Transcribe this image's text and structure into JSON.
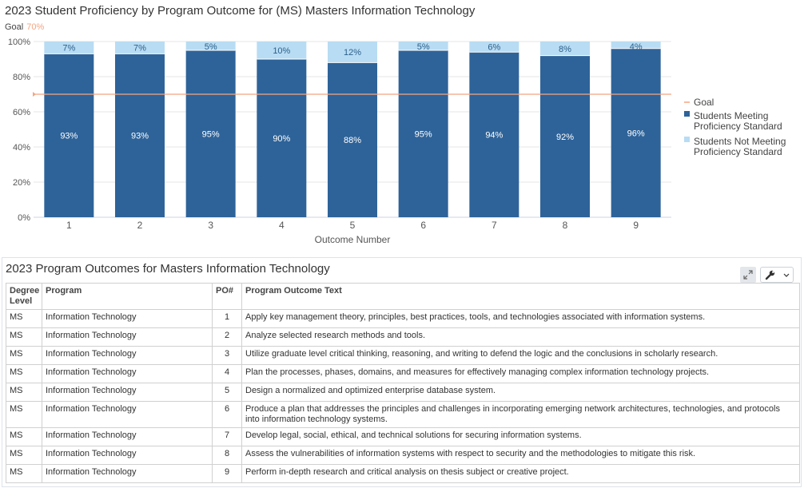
{
  "chart_data": {
    "type": "bar",
    "stacked": true,
    "title": "2023 Student Proficiency by Program Outcome for (MS) Masters Information Technology",
    "goal_label": "Goal",
    "goal_value_label": "70%",
    "goal": 70,
    "xlabel": "Outcome Number",
    "ylabel": "",
    "ylim": [
      0,
      100
    ],
    "y_ticks": [
      "0%",
      "20%",
      "40%",
      "60%",
      "80%",
      "100%"
    ],
    "categories": [
      "1",
      "2",
      "3",
      "4",
      "5",
      "6",
      "7",
      "8",
      "9"
    ],
    "series": [
      {
        "name": "Students Meeting Proficiency Standard",
        "values": [
          93,
          93,
          95,
          90,
          88,
          95,
          94,
          92,
          96
        ],
        "labels": [
          "93%",
          "93%",
          "95%",
          "90%",
          "88%",
          "95%",
          "94%",
          "92%",
          "96%"
        ],
        "color": "#2e6399"
      },
      {
        "name": "Students Not Meeting Proficiency Standard",
        "values": [
          7,
          7,
          5,
          10,
          12,
          5,
          6,
          8,
          4
        ],
        "labels": [
          "7%",
          "7%",
          "5%",
          "10%",
          "12%",
          "5%",
          "6%",
          "8%",
          "4%"
        ],
        "color": "#b8dcf3"
      }
    ],
    "legend": {
      "placement": "right",
      "entries": [
        {
          "lines": [
            "Goal"
          ],
          "color": "#f4a582",
          "marker": "line"
        },
        {
          "lines": [
            "Students Meeting",
            "Proficiency Standard"
          ],
          "color": "#2e6399",
          "marker": "square"
        },
        {
          "lines": [
            "Students Not Meeting",
            "Proficiency Standard"
          ],
          "color": "#b8dcf3",
          "marker": "square"
        }
      ]
    },
    "grid": true
  },
  "table": {
    "title": "2023 Program Outcomes for Masters Information Technology",
    "expand_icon": "expand-icon",
    "tools_icon": "wrench-icon",
    "columns": [
      "Degree Level",
      "Program",
      "PO#",
      "Program Outcome Text"
    ],
    "rows": [
      {
        "degree": "MS",
        "program": "Information Technology",
        "po": "1",
        "text": "Apply key management theory, principles, best practices, tools, and technologies associated with information systems."
      },
      {
        "degree": "MS",
        "program": "Information Technology",
        "po": "2",
        "text": "Analyze selected research methods and tools."
      },
      {
        "degree": "MS",
        "program": "Information Technology",
        "po": "3",
        "text": "Utilize graduate level critical thinking, reasoning, and writing to defend the logic and the conclusions in scholarly research."
      },
      {
        "degree": "MS",
        "program": "Information Technology",
        "po": "4",
        "text": "Plan the processes, phases, domains, and measures for effectively managing complex information technology projects."
      },
      {
        "degree": "MS",
        "program": "Information Technology",
        "po": "5",
        "text": "Design a normalized and optimized enterprise database system."
      },
      {
        "degree": "MS",
        "program": "Information Technology",
        "po": "6",
        "text": "Produce a plan that addresses the principles and challenges in incorporating emerging network architectures, technologies, and protocols into information technology systems."
      },
      {
        "degree": "MS",
        "program": "Information Technology",
        "po": "7",
        "text": "Develop legal, social, ethical, and technical solutions for securing information systems."
      },
      {
        "degree": "MS",
        "program": "Information Technology",
        "po": "8",
        "text": "Assess the vulnerabilities of information systems with respect to security and the methodologies to mitigate this risk."
      },
      {
        "degree": "MS",
        "program": "Information Technology",
        "po": "9",
        "text": "Perform in-depth research and critical analysis on thesis subject or creative project."
      }
    ]
  }
}
